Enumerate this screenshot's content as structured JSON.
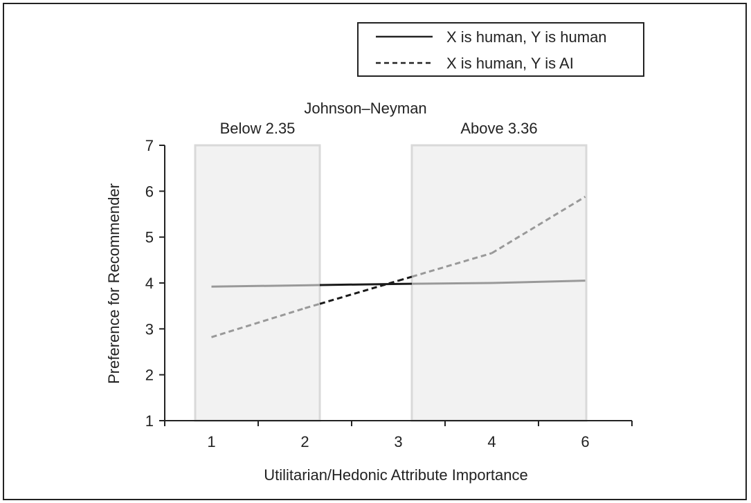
{
  "chart_data": {
    "type": "line",
    "title": "",
    "xlabel": "Utilitarian/Hedonic Attribute Importance",
    "ylabel": "Preference for Recommender",
    "x_ticks": [
      "1",
      "2",
      "3",
      "4",
      "6"
    ],
    "ylim": [
      1,
      7
    ],
    "y_ticks": [
      "1",
      "2",
      "3",
      "4",
      "5",
      "6",
      "7"
    ],
    "grid": false,
    "legend_position": "top-right",
    "annotation": {
      "title": "Johnson–Neyman",
      "regions": [
        {
          "label": "Below 2.35",
          "from": 1,
          "to": 2.35
        },
        {
          "label": "Above 3.36",
          "from": 3.36,
          "to": 6
        }
      ]
    },
    "series": [
      {
        "name": "X is human, Y is human",
        "style": "solid",
        "x": [
          1,
          2,
          3,
          4,
          6
        ],
        "y": [
          3.92,
          3.95,
          3.98,
          4.0,
          4.05
        ]
      },
      {
        "name": "X is human, Y is AI",
        "style": "dashed",
        "x": [
          1,
          2,
          3,
          4,
          6
        ],
        "y": [
          2.82,
          3.45,
          4.05,
          4.65,
          5.88
        ]
      }
    ],
    "colors": {
      "line_inside_region": "#999999",
      "line_outside_region": "#1a1a1a",
      "region_fill": "#f2f2f2",
      "region_stroke": "#d9d9d9"
    }
  }
}
